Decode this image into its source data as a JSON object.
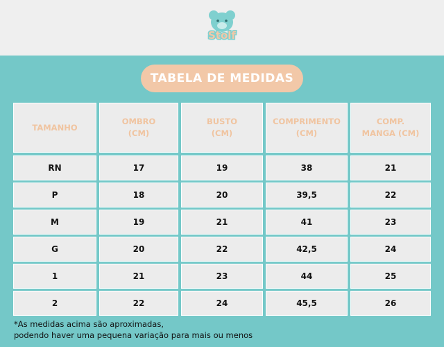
{
  "header": {
    "logo": "Stolf",
    "title": "TABELA DE MEDIDAS"
  },
  "table": {
    "header": [
      [
        "TAMANHO"
      ],
      [
        "OMBRO",
        "(CM)"
      ],
      [
        "BUSTO",
        "(CM)"
      ],
      [
        "COMPRIMENTO",
        "(CM)"
      ],
      [
        "COMP.",
        "MANGA (CM)"
      ]
    ],
    "rows": [
      [
        "RN",
        "17",
        "19",
        "38",
        "21"
      ],
      [
        "P",
        "18",
        "20",
        "39,5",
        "22"
      ],
      [
        "M",
        "19",
        "21",
        "41",
        "23"
      ],
      [
        "G",
        "20",
        "22",
        "42,5",
        "24"
      ],
      [
        "1",
        "21",
        "23",
        "44",
        "25"
      ],
      [
        "2",
        "22",
        "24",
        "45,5",
        "26"
      ]
    ]
  },
  "footnote": [
    "*As medidas acima são aproximadas,",
    "podendo haver uma pequena variação para mais ou menos"
  ]
}
